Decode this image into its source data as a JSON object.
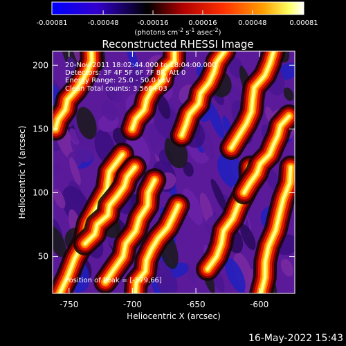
{
  "colorbar": {
    "min": -0.00081,
    "max": 0.00081,
    "tick_labels": [
      "-0.00081",
      "-0.00048",
      "-0.00016",
      "0.00016",
      "0.00048",
      "0.00081"
    ],
    "units_text": "(photons cm",
    "units_sup1": "-2",
    "units_mid1": " s",
    "units_sup2": "-1",
    "units_mid2": " asec",
    "units_sup3": "-2",
    "units_end": ")",
    "colors": [
      "#0000ff",
      "#3300cc",
      "#000000",
      "#ff0000",
      "#ff8000",
      "#ffff80",
      "#ffffff"
    ]
  },
  "title": "Reconstructed RHESSI Image",
  "annotations": {
    "line1": "20-Nov-2011 18:02:44.000 to 18:04:00.000",
    "line2": "Detectors: 3F 4F 5F 6F 7F 8F, Att 0",
    "line3": "Energy Range: 25.0 - 50.0 keV",
    "line4": "Clean    Total counts: 3.56E+03",
    "peak": "Position of Peak = [-579,66]"
  },
  "footer_date": "16-May-2022 15:43",
  "chart_data": {
    "type": "heatmap",
    "title": "Reconstructed RHESSI Image",
    "xlabel": "Heliocentric X (arcsec)",
    "ylabel": "Heliocentric Y (arcsec)",
    "xlim": [
      -763,
      -572
    ],
    "ylim": [
      21,
      211
    ],
    "x_ticks": [
      -750,
      -700,
      -650,
      -600
    ],
    "x_tick_labels": [
      "-750",
      "-700",
      "-650",
      "-600"
    ],
    "y_ticks": [
      50,
      100,
      150,
      200
    ],
    "y_tick_labels": [
      "50",
      "100",
      "150",
      "200"
    ],
    "value_range": [
      -0.00081,
      0.00081
    ],
    "peak_position": [
      -579,
      66
    ],
    "bright_ridges": [
      {
        "x_at_bottom": -755,
        "x_at_top": -710,
        "y_from": 21,
        "y_to": 130
      },
      {
        "x_at_bottom": -735,
        "x_at_top": -700,
        "y_from": 60,
        "y_to": 120
      },
      {
        "x_at_bottom": -720,
        "x_at_top": -680,
        "y_from": 30,
        "y_to": 110
      },
      {
        "x_at_bottom": -700,
        "x_at_top": -665,
        "y_from": 21,
        "y_to": 90
      },
      {
        "x_at_bottom": -640,
        "x_at_top": -605,
        "y_from": 40,
        "y_to": 120
      },
      {
        "x_at_bottom": -600,
        "x_at_top": -575,
        "y_from": 21,
        "y_to": 120
      },
      {
        "x_at_bottom": -760,
        "x_at_top": -730,
        "y_from": 150,
        "y_to": 211
      },
      {
        "x_at_bottom": -700,
        "x_at_top": -665,
        "y_from": 150,
        "y_to": 211
      },
      {
        "x_at_bottom": -660,
        "x_at_top": -630,
        "y_from": 145,
        "y_to": 211
      },
      {
        "x_at_bottom": -620,
        "x_at_top": -590,
        "y_from": 135,
        "y_to": 211
      },
      {
        "x_at_bottom": -610,
        "x_at_top": -578,
        "y_from": 100,
        "y_to": 160
      }
    ]
  }
}
